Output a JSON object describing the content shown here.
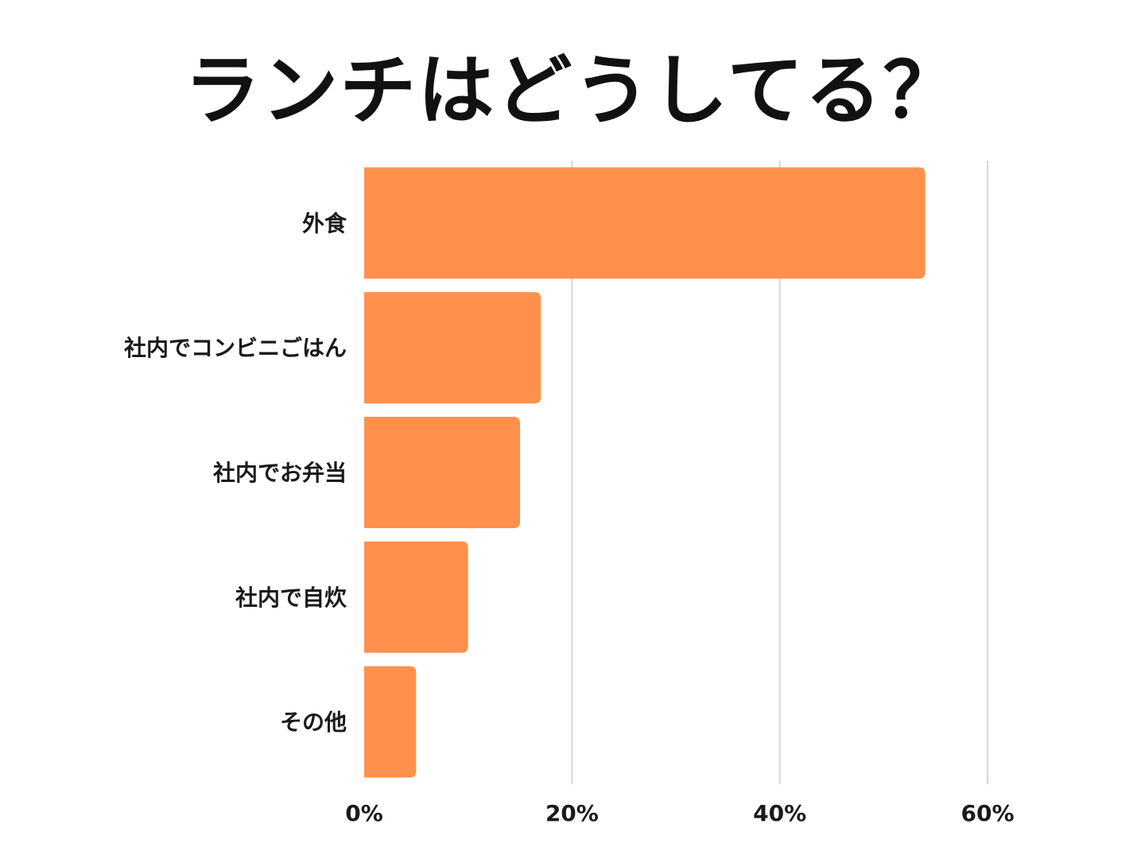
{
  "chart_data": {
    "type": "bar",
    "orientation": "horizontal",
    "title": "ランチはどうしてる？",
    "categories": [
      "外食",
      "社内でコンビニごはん",
      "社内でお弁当",
      "社内で自炊",
      "その他"
    ],
    "values": [
      54,
      17,
      15,
      10,
      5
    ],
    "unit": "%",
    "xlim": [
      0,
      60
    ],
    "xticks": [
      0,
      20,
      40,
      60
    ],
    "xtick_labels": [
      "0%",
      "20%",
      "40%",
      "60%"
    ],
    "xlabel": "",
    "ylabel": "",
    "grid": "vertical",
    "legend": "none",
    "bar_color": "#ff914d",
    "grid_color": "#d6d6d6"
  }
}
